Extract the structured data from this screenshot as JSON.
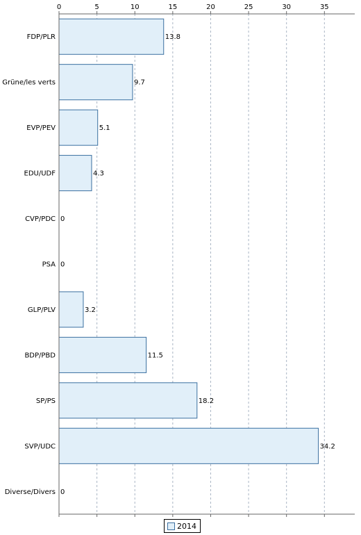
{
  "chart_data": {
    "type": "bar",
    "orientation": "horizontal",
    "categories": [
      "FDP/PLR",
      "Grüne/les verts",
      "EVP/PEV",
      "EDU/UDF",
      "CVP/PDC",
      "PSA",
      "GLP/PLV",
      "BDP/PBD",
      "SP/PS",
      "SVP/UDC",
      "Diverse/Divers"
    ],
    "series": [
      {
        "name": "2014",
        "values": [
          13.8,
          9.7,
          5.1,
          4.3,
          0,
          0,
          3.2,
          11.5,
          18.2,
          34.2,
          0
        ]
      }
    ],
    "value_labels": [
      "13.8",
      "9.7",
      "5.1",
      "4.3",
      "0",
      "0",
      "3.2",
      "11.5",
      "18.2",
      "34.2",
      "0"
    ],
    "xlim": [
      0,
      39
    ],
    "ticks": [
      "0",
      "5",
      "10",
      "15",
      "20",
      "25",
      "30",
      "35"
    ],
    "tick_values": [
      0,
      5,
      10,
      15,
      20,
      25,
      30,
      35
    ],
    "xaxis_position": "top",
    "grid": "vertical dashed",
    "legend_position": "bottom-center",
    "colors": {
      "bar_fill": "#e1eff9",
      "bar_stroke": "#3a6fa0",
      "grid": "#a9b5c4"
    }
  },
  "legend": {
    "label": "2014"
  }
}
